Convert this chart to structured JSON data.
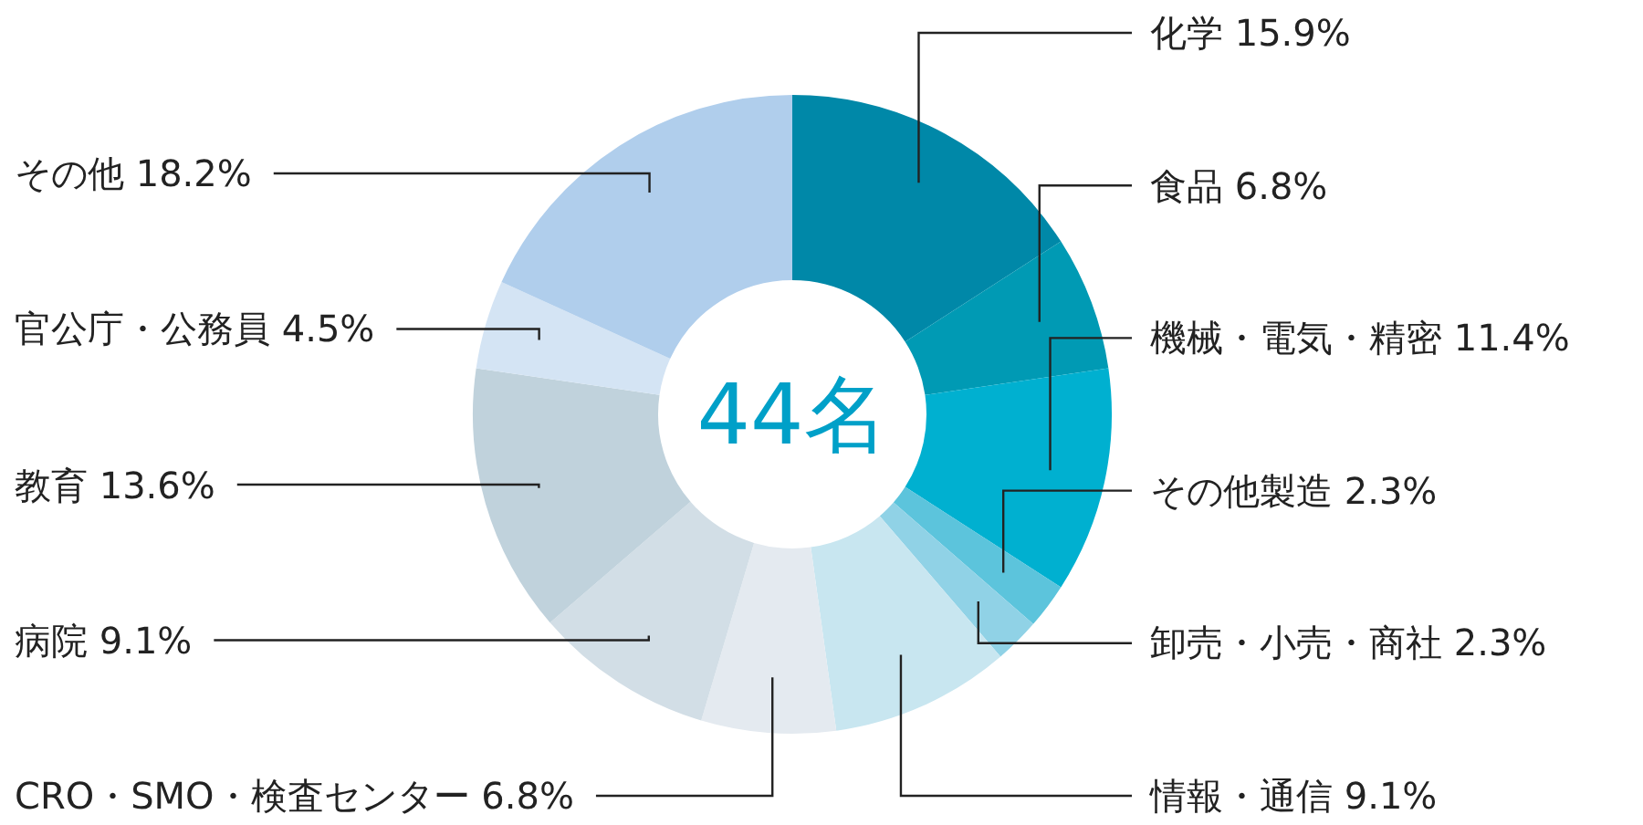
{
  "chart_data": {
    "type": "donut",
    "categories": [
      "化学",
      "食品",
      "機械・電気・精密",
      "その他製造",
      "卸売・小売・商社",
      "情報・通信",
      "CRO・SMO・検査センター",
      "病院",
      "教育",
      "官公庁・公務員",
      "その他"
    ],
    "values": [
      15.9,
      6.8,
      11.4,
      2.3,
      2.3,
      9.1,
      6.8,
      9.1,
      13.6,
      4.5,
      18.2
    ],
    "value_labels": [
      "15.9%",
      "6.8%",
      "11.4%",
      "2.3%",
      "2.3%",
      "9.1%",
      "6.8%",
      "9.1%",
      "13.6%",
      "4.5%",
      "18.2%"
    ],
    "colors": [
      "#0088a8",
      "#009ab4",
      "#00b0d0",
      "#5cc4dc",
      "#90d2e6",
      "#c8e6f0",
      "#e4eaf0",
      "#d2dee6",
      "#c0d2dc",
      "#d4e4f4",
      "#b0ceec"
    ],
    "annotations": [
      "44名"
    ],
    "legend": false
  }
}
